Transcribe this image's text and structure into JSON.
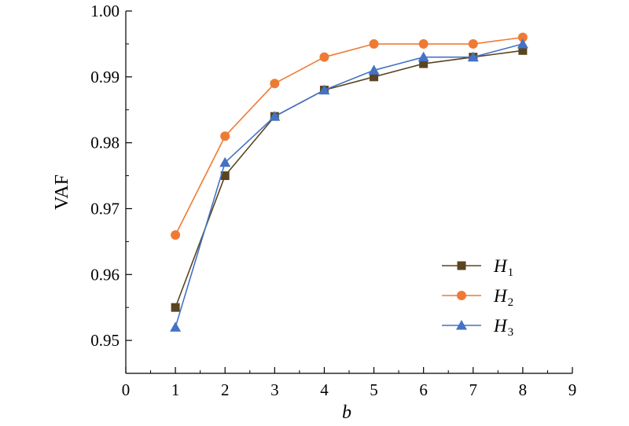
{
  "chart_data": {
    "type": "line",
    "xlabel": "b",
    "ylabel": "VAF",
    "xlim": [
      0,
      9
    ],
    "ylim": [
      0.945,
      1.0
    ],
    "xticks": [
      0,
      1,
      2,
      3,
      4,
      5,
      6,
      7,
      8,
      9
    ],
    "yticks": [
      0.95,
      0.96,
      0.97,
      0.98,
      0.99,
      1.0
    ],
    "ytick_labels": [
      "0.95",
      "0.96",
      "0.97",
      "0.98",
      "0.99",
      "1.00"
    ],
    "xtick_labels": [
      "0",
      "1",
      "2",
      "3",
      "4",
      "5",
      "6",
      "7",
      "8",
      "9"
    ],
    "grid": false,
    "legend_position": "bottom-right",
    "x": [
      1,
      2,
      3,
      4,
      5,
      6,
      7,
      8
    ],
    "series": [
      {
        "name": "H",
        "subscript": "1",
        "marker": "square",
        "color": "#5a4520",
        "marker_color": "#5a4520",
        "values": [
          0.955,
          0.975,
          0.984,
          0.988,
          0.99,
          0.992,
          0.993,
          0.994
        ]
      },
      {
        "name": "H",
        "subscript": "2",
        "marker": "circle",
        "color": "#ee7b35",
        "marker_color": "#ee7b35",
        "values": [
          0.966,
          0.981,
          0.989,
          0.993,
          0.995,
          0.995,
          0.995,
          0.996
        ]
      },
      {
        "name": "H",
        "subscript": "3",
        "marker": "triangle",
        "color": "#4472c4",
        "marker_color": "#4472c4",
        "values": [
          0.952,
          0.977,
          0.984,
          0.988,
          0.991,
          0.993,
          0.993,
          0.995
        ]
      }
    ]
  }
}
